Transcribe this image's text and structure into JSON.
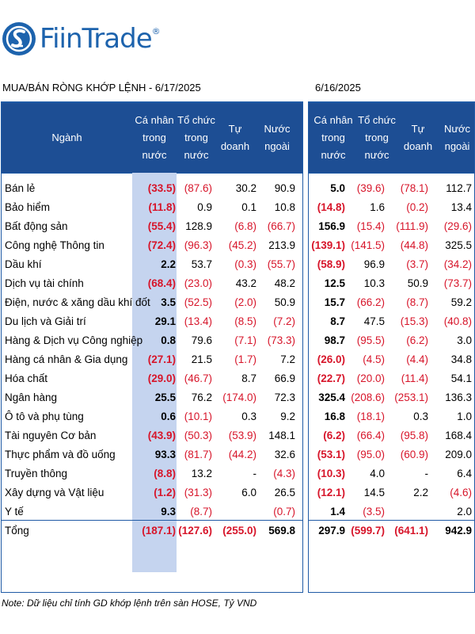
{
  "brand": {
    "name": "FiinTrade",
    "reg": "®",
    "color": "#1d63ad"
  },
  "left_title": "MUA/BÁN RÒNG KHỚP LỆNH - 6/17/2025",
  "right_title": "6/16/2025",
  "left_headers": {
    "sector": "Ngành",
    "individual": [
      "Cá nhân",
      "trong",
      "nước"
    ],
    "institution": [
      "Tổ chức",
      "trong",
      "nước"
    ],
    "proprietary": [
      "Tự doanh"
    ],
    "foreign": [
      "Nước",
      "ngoài"
    ]
  },
  "right_headers": {
    "individual": [
      "Cá nhân",
      "trong nước"
    ],
    "institution": [
      "Tổ chức",
      "trong",
      "nước"
    ],
    "proprietary": [
      "Tự doanh"
    ],
    "foreign": [
      "Nước",
      "ngoài"
    ]
  },
  "rows": [
    {
      "name": "Bán lẻ",
      "d17": [
        "(33.5)",
        "(87.6)",
        "30.2",
        "90.9"
      ],
      "d16": [
        "5.0",
        "(39.6)",
        "(78.1)",
        "112.7"
      ]
    },
    {
      "name": "Bảo hiểm",
      "d17": [
        "(11.8)",
        "0.9",
        "0.1",
        "10.8"
      ],
      "d16": [
        "(14.8)",
        "1.6",
        "(0.2)",
        "13.4"
      ]
    },
    {
      "name": "Bất động sản",
      "d17": [
        "(55.4)",
        "128.9",
        "(6.8)",
        "(66.7)"
      ],
      "d16": [
        "156.9",
        "(15.4)",
        "(111.9)",
        "(29.6)"
      ]
    },
    {
      "name": "Công nghệ Thông tin",
      "d17": [
        "(72.4)",
        "(96.3)",
        "(45.2)",
        "213.9"
      ],
      "d16": [
        "(139.1)",
        "(141.5)",
        "(44.8)",
        "325.5"
      ]
    },
    {
      "name": "Dầu khí",
      "d17": [
        "2.2",
        "53.7",
        "(0.3)",
        "(55.7)"
      ],
      "d16": [
        "(58.9)",
        "96.9",
        "(3.7)",
        "(34.2)"
      ]
    },
    {
      "name": "Dịch vụ tài chính",
      "d17": [
        "(68.4)",
        "(23.0)",
        "43.2",
        "48.2"
      ],
      "d16": [
        "12.5",
        "10.3",
        "50.9",
        "(73.7)"
      ]
    },
    {
      "name": "Điện, nước & xăng dầu khí đốt",
      "d17": [
        "3.5",
        "(52.5)",
        "(2.0)",
        "50.9"
      ],
      "d16": [
        "15.7",
        "(66.2)",
        "(8.7)",
        "59.2"
      ]
    },
    {
      "name": "Du lịch và Giải trí",
      "d17": [
        "29.1",
        "(13.4)",
        "(8.5)",
        "(7.2)"
      ],
      "d16": [
        "8.7",
        "47.5",
        "(15.3)",
        "(40.8)"
      ]
    },
    {
      "name": "Hàng & Dịch vụ Công nghiệp",
      "d17": [
        "0.8",
        "79.6",
        "(7.1)",
        "(73.3)"
      ],
      "d16": [
        "98.7",
        "(95.5)",
        "(6.2)",
        "3.0"
      ]
    },
    {
      "name": "Hàng cá nhân & Gia dụng",
      "d17": [
        "(27.1)",
        "21.5",
        "(1.7)",
        "7.2"
      ],
      "d16": [
        "(26.0)",
        "(4.5)",
        "(4.4)",
        "34.8"
      ]
    },
    {
      "name": "Hóa chất",
      "d17": [
        "(29.0)",
        "(46.7)",
        "8.7",
        "66.9"
      ],
      "d16": [
        "(22.7)",
        "(20.0)",
        "(11.4)",
        "54.1"
      ]
    },
    {
      "name": "Ngân hàng",
      "d17": [
        "25.5",
        "76.2",
        "(174.0)",
        "72.3"
      ],
      "d16": [
        "325.4",
        "(208.6)",
        "(253.1)",
        "136.3"
      ]
    },
    {
      "name": "Ô tô và phụ tùng",
      "d17": [
        "0.6",
        "(10.1)",
        "0.3",
        "9.2"
      ],
      "d16": [
        "16.8",
        "(18.1)",
        "0.3",
        "1.0"
      ]
    },
    {
      "name": "Tài nguyên Cơ bản",
      "d17": [
        "(43.9)",
        "(50.3)",
        "(53.9)",
        "148.1"
      ],
      "d16": [
        "(6.2)",
        "(66.4)",
        "(95.8)",
        "168.4"
      ]
    },
    {
      "name": "Thực phẩm và đồ uống",
      "d17": [
        "93.3",
        "(81.7)",
        "(44.2)",
        "32.6"
      ],
      "d16": [
        "(53.1)",
        "(95.0)",
        "(60.9)",
        "209.0"
      ]
    },
    {
      "name": "Truyền thông",
      "d17": [
        "(8.8)",
        "13.2",
        "-",
        "(4.3)"
      ],
      "d16": [
        "(10.3)",
        "4.0",
        "-",
        "6.4"
      ]
    },
    {
      "name": "Xây dựng và Vật liệu",
      "d17": [
        "(1.2)",
        "(31.3)",
        "6.0",
        "26.5"
      ],
      "d16": [
        "(12.1)",
        "14.5",
        "2.2",
        "(4.6)"
      ]
    },
    {
      "name": "Y tế",
      "d17": [
        "9.3",
        "(8.7)",
        "",
        "(0.7)"
      ],
      "d16": [
        "1.4",
        "(3.5)",
        "",
        "2.0"
      ]
    }
  ],
  "total": {
    "name": "Tổng",
    "d17": [
      "(187.1)",
      "(127.6)",
      "(255.0)",
      "569.8"
    ],
    "d16": [
      "297.9",
      "(599.7)",
      "(641.1)",
      "942.9"
    ]
  },
  "note": "Note: Dữ liệu chỉ tính GD khớp lệnh trên sàn HOSE, Tỷ VND",
  "colors": {
    "header_bg": "#1d4e94",
    "highlight_col": "#c5d4ef",
    "negative": "#d7152a"
  }
}
